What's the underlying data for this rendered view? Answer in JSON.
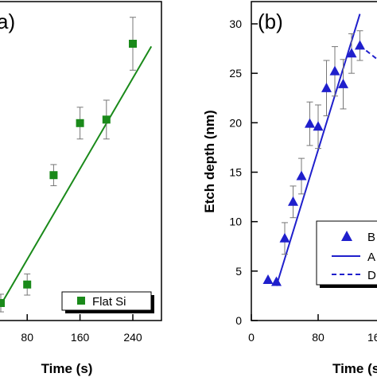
{
  "chart_data": [
    {
      "panel": "(a)",
      "panel_label": "a)",
      "type": "scatter",
      "xlabel": "Time (s)",
      "ylabel": "",
      "xlim": [
        -10,
        270
      ],
      "ylim": [
        -2,
        32
      ],
      "xticks": [
        80,
        160,
        240
      ],
      "series": [
        {
          "name": "Flat Si",
          "marker": "square",
          "color": "#1a8a1a",
          "x": [
            40,
            80,
            120,
            160,
            200,
            240
          ],
          "y": [
            1.8,
            3.9,
            16.3,
            22.2,
            22.6,
            31.2
          ],
          "err": [
            1.0,
            1.2,
            1.2,
            1.8,
            2.2,
            3.0
          ]
        }
      ],
      "fit": {
        "color": "#1a8a1a",
        "x": [
          40,
          268
        ],
        "y": [
          1.6,
          30.9
        ]
      },
      "legend": "bottom-right"
    },
    {
      "panel": "(b)",
      "panel_label": "(b)",
      "type": "scatter",
      "xlabel": "Time (s",
      "ylabel": "Etch depth (nm)",
      "xlim": [
        0,
        175
      ],
      "ylim": [
        0,
        32
      ],
      "xticks": [
        0,
        80
      ],
      "yticks": [
        0,
        5,
        10,
        15,
        20,
        25,
        30
      ],
      "partial_tick": "16",
      "series": [
        {
          "name": "B",
          "marker": "triangle",
          "color": "#1f1fcc",
          "x": [
            20,
            30,
            40,
            50,
            60,
            70,
            80,
            90,
            100,
            110,
            120,
            130
          ],
          "y": [
            4.1,
            3.9,
            8.3,
            12.0,
            14.6,
            19.9,
            19.6,
            23.5,
            25.2,
            23.9,
            27.0,
            27.8
          ],
          "err": [
            0.0,
            0.0,
            1.6,
            1.6,
            1.8,
            2.2,
            2.2,
            2.8,
            2.5,
            2.5,
            2.0,
            1.5
          ]
        }
      ],
      "fit_solid": {
        "name": "A",
        "color": "#1f1fcc",
        "x": [
          30,
          130
        ],
        "y": [
          3.5,
          31.0
        ]
      },
      "fit_dashed": {
        "name": "D",
        "color": "#1f1fcc",
        "x": [
          130,
          160
        ],
        "y": [
          27.8,
          25.8
        ]
      },
      "legend": "bottom-right"
    }
  ]
}
